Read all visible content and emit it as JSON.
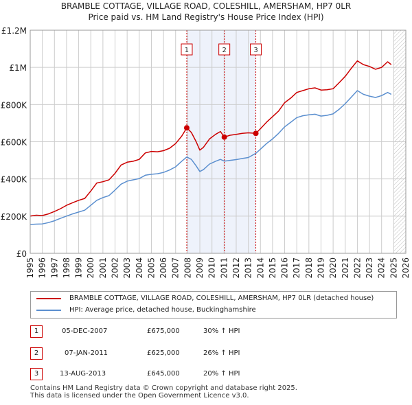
{
  "chart_data": {
    "type": "line",
    "title_line1": "BRAMBLE COTTAGE, VILLAGE ROAD, COLESHILL, AMERSHAM, HP7 0LR",
    "title_line2": "Price paid vs. HM Land Registry's House Price Index (HPI)",
    "x_range": [
      1995,
      2026
    ],
    "y_range": [
      0,
      1200000
    ],
    "x_ticks": [
      "1995",
      "1996",
      "1997",
      "1998",
      "1999",
      "2000",
      "2001",
      "2002",
      "2003",
      "2004",
      "2005",
      "2006",
      "2007",
      "2008",
      "2009",
      "2010",
      "2011",
      "2012",
      "2013",
      "2014",
      "2015",
      "2016",
      "2017",
      "2018",
      "2019",
      "2020",
      "2021",
      "2022",
      "2023",
      "2024",
      "2025",
      "2026"
    ],
    "y_ticks": [
      {
        "value": 0,
        "label": "£0"
      },
      {
        "value": 200000,
        "label": "£200K"
      },
      {
        "value": 400000,
        "label": "£400K"
      },
      {
        "value": 600000,
        "label": "£600K"
      },
      {
        "value": 800000,
        "label": "£800K"
      },
      {
        "value": 1000000,
        "label": "£1M"
      },
      {
        "value": 1200000,
        "label": "£1.2M"
      }
    ],
    "shaded_ranges": [
      [
        2007.92,
        2013.62
      ]
    ],
    "hatched_from": 2025.0,
    "series": [
      {
        "name": "BRAMBLE COTTAGE, VILLAGE ROAD, COLESHILL, AMERSHAM, HP7 0LR (detached house)",
        "color": "#cc0000",
        "points": [
          [
            1995.0,
            200000
          ],
          [
            1995.5,
            205000
          ],
          [
            1996.0,
            203000
          ],
          [
            1996.5,
            212000
          ],
          [
            1997.0,
            225000
          ],
          [
            1997.5,
            240000
          ],
          [
            1998.0,
            258000
          ],
          [
            1998.5,
            272000
          ],
          [
            1999.0,
            285000
          ],
          [
            1999.5,
            295000
          ],
          [
            2000.0,
            335000
          ],
          [
            2000.5,
            378000
          ],
          [
            2001.0,
            385000
          ],
          [
            2001.5,
            395000
          ],
          [
            2002.0,
            430000
          ],
          [
            2002.5,
            475000
          ],
          [
            2003.0,
            490000
          ],
          [
            2003.5,
            495000
          ],
          [
            2004.0,
            505000
          ],
          [
            2004.5,
            540000
          ],
          [
            2005.0,
            548000
          ],
          [
            2005.5,
            546000
          ],
          [
            2006.0,
            552000
          ],
          [
            2006.5,
            565000
          ],
          [
            2007.0,
            590000
          ],
          [
            2007.5,
            630000
          ],
          [
            2007.92,
            675000
          ],
          [
            2008.3,
            650000
          ],
          [
            2008.7,
            600000
          ],
          [
            2009.0,
            555000
          ],
          [
            2009.3,
            570000
          ],
          [
            2009.8,
            615000
          ],
          [
            2010.3,
            640000
          ],
          [
            2010.7,
            655000
          ],
          [
            2011.02,
            625000
          ],
          [
            2011.5,
            635000
          ],
          [
            2012.0,
            640000
          ],
          [
            2012.5,
            645000
          ],
          [
            2013.0,
            648000
          ],
          [
            2013.62,
            645000
          ],
          [
            2014.0,
            670000
          ],
          [
            2014.5,
            705000
          ],
          [
            2015.0,
            735000
          ],
          [
            2015.5,
            765000
          ],
          [
            2016.0,
            810000
          ],
          [
            2016.5,
            835000
          ],
          [
            2017.0,
            865000
          ],
          [
            2017.5,
            875000
          ],
          [
            2018.0,
            885000
          ],
          [
            2018.5,
            890000
          ],
          [
            2019.0,
            878000
          ],
          [
            2019.5,
            880000
          ],
          [
            2020.0,
            885000
          ],
          [
            2020.5,
            918000
          ],
          [
            2021.0,
            952000
          ],
          [
            2021.5,
            995000
          ],
          [
            2022.0,
            1035000
          ],
          [
            2022.5,
            1015000
          ],
          [
            2023.0,
            1005000
          ],
          [
            2023.5,
            990000
          ],
          [
            2024.0,
            1000000
          ],
          [
            2024.5,
            1030000
          ],
          [
            2024.8,
            1015000
          ]
        ]
      },
      {
        "name": "HPI: Average price, detached house, Buckinghamshire",
        "color": "#5b8fcf",
        "points": [
          [
            1995.0,
            155000
          ],
          [
            1995.5,
            157000
          ],
          [
            1996.0,
            158000
          ],
          [
            1996.5,
            165000
          ],
          [
            1997.0,
            175000
          ],
          [
            1997.5,
            188000
          ],
          [
            1998.0,
            200000
          ],
          [
            1998.5,
            212000
          ],
          [
            1999.0,
            222000
          ],
          [
            1999.5,
            232000
          ],
          [
            2000.0,
            258000
          ],
          [
            2000.5,
            285000
          ],
          [
            2001.0,
            300000
          ],
          [
            2001.5,
            310000
          ],
          [
            2002.0,
            340000
          ],
          [
            2002.5,
            372000
          ],
          [
            2003.0,
            388000
          ],
          [
            2003.5,
            395000
          ],
          [
            2004.0,
            402000
          ],
          [
            2004.5,
            420000
          ],
          [
            2005.0,
            425000
          ],
          [
            2005.5,
            428000
          ],
          [
            2006.0,
            435000
          ],
          [
            2006.5,
            448000
          ],
          [
            2007.0,
            465000
          ],
          [
            2007.5,
            495000
          ],
          [
            2007.92,
            518000
          ],
          [
            2008.3,
            505000
          ],
          [
            2008.7,
            470000
          ],
          [
            2009.0,
            440000
          ],
          [
            2009.3,
            450000
          ],
          [
            2009.8,
            480000
          ],
          [
            2010.3,
            495000
          ],
          [
            2010.7,
            505000
          ],
          [
            2011.02,
            496000
          ],
          [
            2011.5,
            500000
          ],
          [
            2012.0,
            504000
          ],
          [
            2012.5,
            510000
          ],
          [
            2013.0,
            515000
          ],
          [
            2013.62,
            538000
          ],
          [
            2014.0,
            560000
          ],
          [
            2014.5,
            590000
          ],
          [
            2015.0,
            615000
          ],
          [
            2015.5,
            645000
          ],
          [
            2016.0,
            680000
          ],
          [
            2016.5,
            705000
          ],
          [
            2017.0,
            730000
          ],
          [
            2017.5,
            740000
          ],
          [
            2018.0,
            745000
          ],
          [
            2018.5,
            748000
          ],
          [
            2019.0,
            738000
          ],
          [
            2019.5,
            742000
          ],
          [
            2020.0,
            750000
          ],
          [
            2020.5,
            775000
          ],
          [
            2021.0,
            805000
          ],
          [
            2021.5,
            840000
          ],
          [
            2022.0,
            875000
          ],
          [
            2022.5,
            855000
          ],
          [
            2023.0,
            845000
          ],
          [
            2023.5,
            838000
          ],
          [
            2024.0,
            848000
          ],
          [
            2024.5,
            865000
          ],
          [
            2024.8,
            855000
          ]
        ]
      }
    ],
    "sales": [
      {
        "id": "1",
        "x": 2007.92,
        "value": 675000,
        "date": "05-DEC-2007",
        "price": "£675,000",
        "hpi_change": "30% ↑ HPI"
      },
      {
        "id": "2",
        "x": 2011.02,
        "value": 625000,
        "date": "07-JAN-2011",
        "price": "£625,000",
        "hpi_change": "26% ↑ HPI"
      },
      {
        "id": "3",
        "x": 2013.62,
        "value": 645000,
        "date": "13-AUG-2013",
        "price": "£645,000",
        "hpi_change": "20% ↑ HPI"
      }
    ]
  },
  "footer": {
    "line1": "Contains HM Land Registry data © Crown copyright and database right 2025.",
    "line2": "This data is licensed under the Open Government Licence v3.0."
  }
}
